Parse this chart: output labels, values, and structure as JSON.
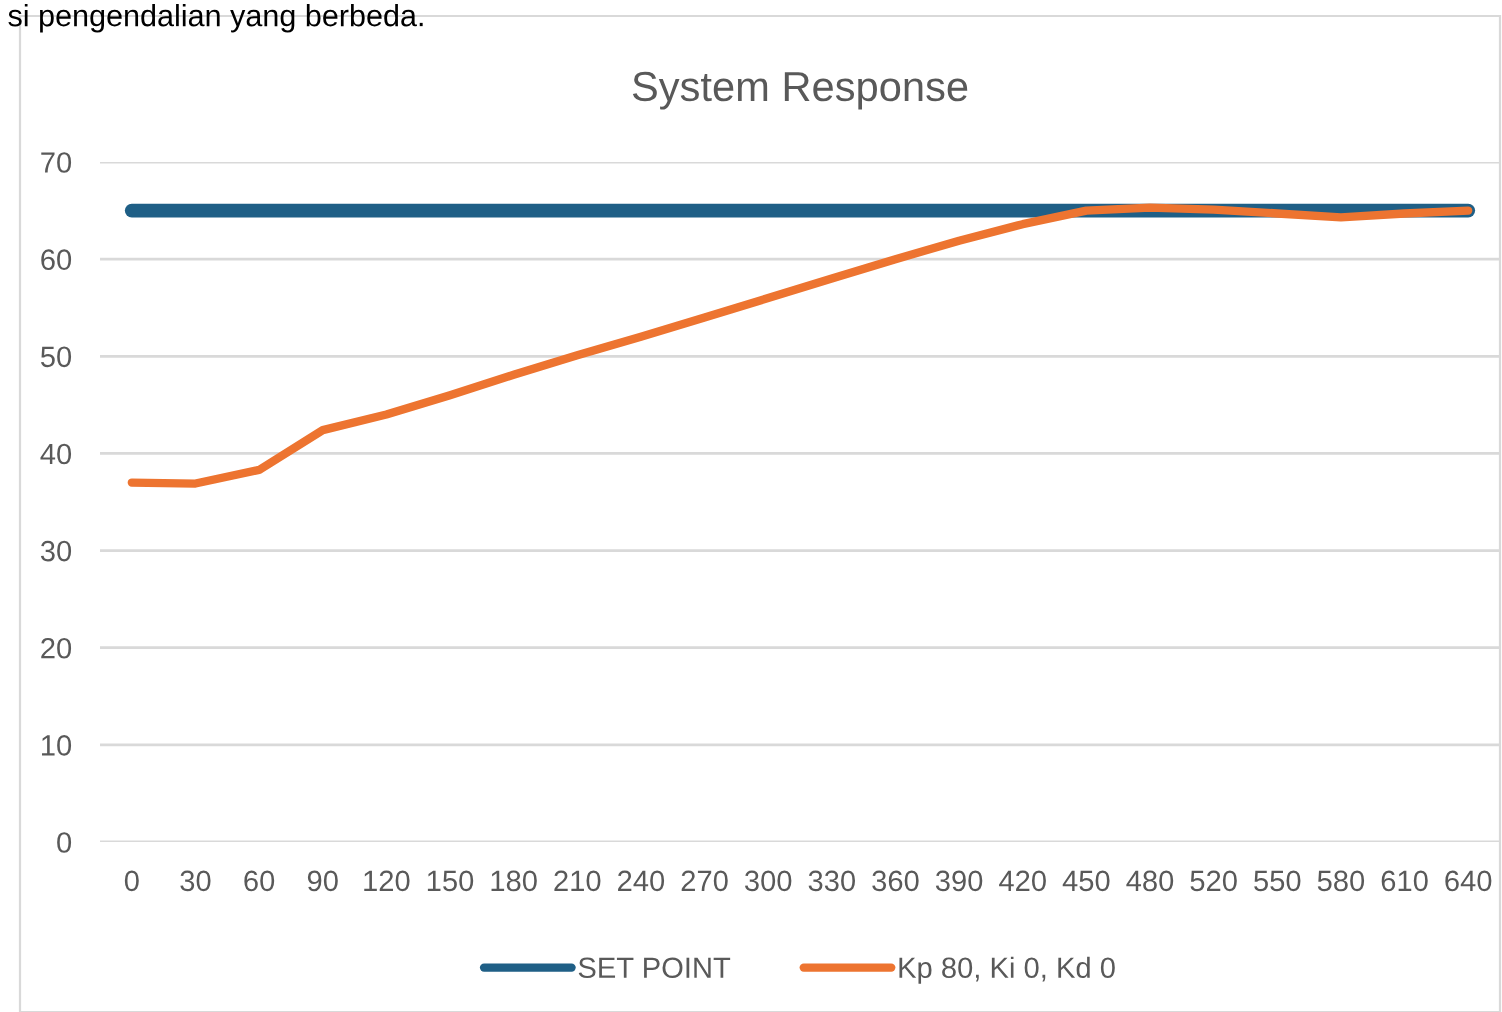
{
  "chart_data": {
    "type": "line",
    "title": "System Response",
    "categories": [
      "0",
      "30",
      "60",
      "90",
      "120",
      "150",
      "180",
      "210",
      "240",
      "270",
      "300",
      "330",
      "360",
      "390",
      "420",
      "450",
      "480",
      "520",
      "550",
      "580",
      "610",
      "640"
    ],
    "series": [
      {
        "name": "SET POINT",
        "color": "#1f5f86",
        "values": [
          65,
          65,
          65,
          65,
          65,
          65,
          65,
          65,
          65,
          65,
          65,
          65,
          65,
          65,
          65,
          65,
          65,
          65,
          65,
          65,
          65,
          65
        ]
      },
      {
        "name": "Kp 80, Ki 0, Kd 0",
        "color": "#ed7430",
        "values": [
          37,
          36.9,
          38.3,
          42.4,
          44,
          46,
          48.1,
          50.1,
          52,
          54,
          56,
          58,
          60,
          61.9,
          63.6,
          65,
          65.3,
          65.1,
          64.7,
          64.3,
          64.7,
          65
        ]
      }
    ],
    "ylim": [
      0,
      70
    ],
    "yticks": [
      0,
      10,
      20,
      30,
      40,
      50,
      60,
      70
    ],
    "grid": "y",
    "legend": "bottom",
    "marker": "none",
    "line_style": "solid",
    "annotations": [
      "si pengendalian yang berbeda."
    ]
  }
}
